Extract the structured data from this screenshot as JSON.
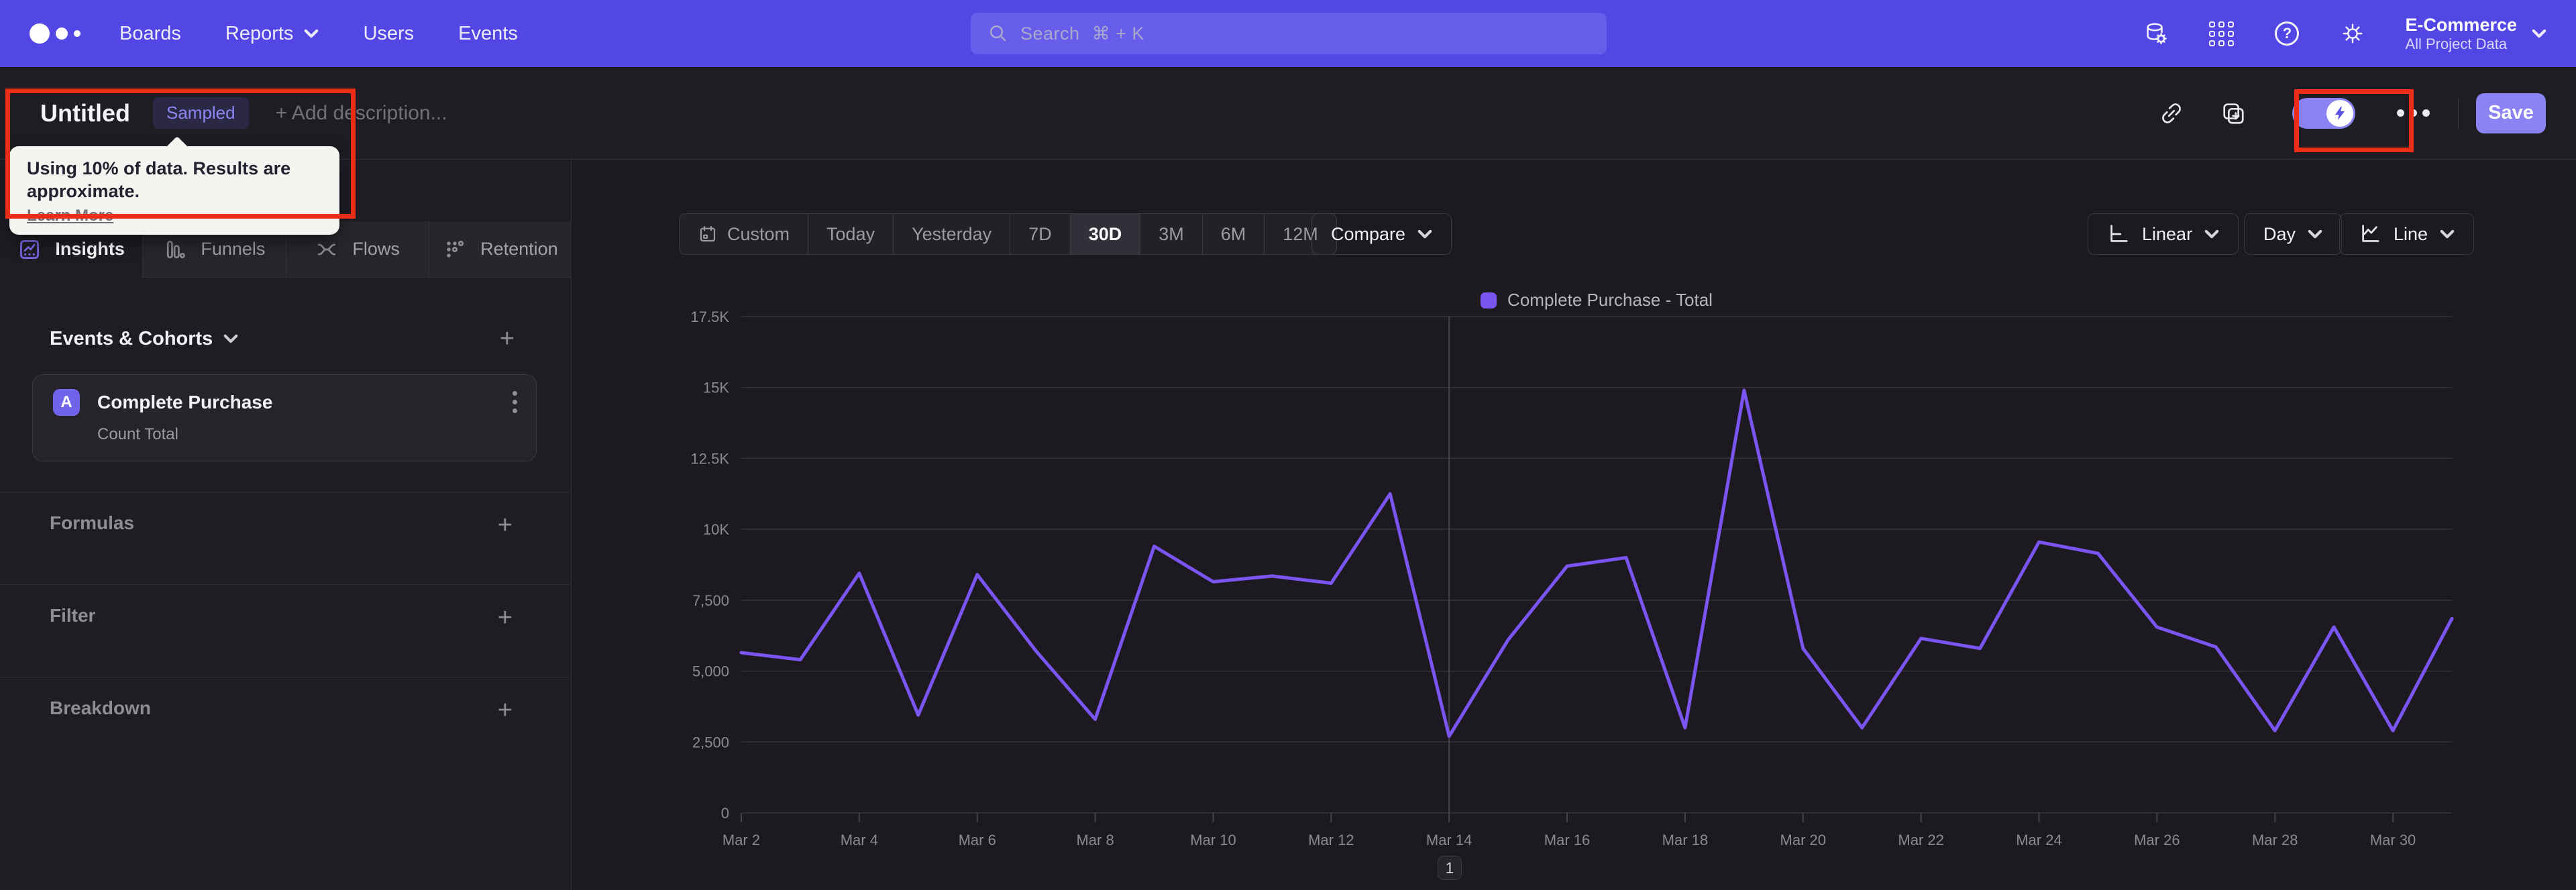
{
  "colors": {
    "navbar": "#5247e5",
    "accent": "#8b83f4",
    "line": "#7a55f2",
    "highlight_red": "#ee2d18"
  },
  "navbar": {
    "links": [
      "Boards",
      "Reports",
      "Users",
      "Events"
    ],
    "search_placeholder": "Search",
    "search_shortcut": "⌘ + K",
    "project": {
      "name": "E-Commerce",
      "scope": "All Project Data"
    }
  },
  "toolbar": {
    "title": "Untitled",
    "badge": "Sampled",
    "add_description": "+ Add description...",
    "save_label": "Save"
  },
  "tooltip": {
    "text": "Using 10% of data. Results are approximate.",
    "link": "Learn More"
  },
  "sidebar": {
    "tabs": [
      {
        "label": "Insights",
        "active": true
      },
      {
        "label": "Funnels",
        "active": false
      },
      {
        "label": "Flows",
        "active": false
      },
      {
        "label": "Retention",
        "active": false
      }
    ],
    "events_header": "Events & Cohorts",
    "event": {
      "letter": "A",
      "name": "Complete Purchase",
      "metric": "Count Total"
    },
    "sections": [
      "Formulas",
      "Filter",
      "Breakdown"
    ]
  },
  "controls": {
    "ranges": [
      "Custom",
      "Today",
      "Yesterday",
      "7D",
      "30D",
      "3M",
      "6M",
      "12M"
    ],
    "active_range": "30D",
    "compare_label": "Compare",
    "scale_label": "Linear",
    "interval_label": "Day",
    "chart_type_label": "Line"
  },
  "pagination": "1",
  "chart_data": {
    "type": "line",
    "title": "Complete Purchase - Total",
    "legend_position": "top-center",
    "grid": true,
    "ylim": [
      0,
      17500
    ],
    "y_ticks": [
      "17.5K",
      "15K",
      "12.5K",
      "10K",
      "7,500",
      "5,000",
      "2,500",
      "0"
    ],
    "y_tick_values": [
      17500,
      15000,
      12500,
      10000,
      7500,
      5000,
      2500,
      0
    ],
    "x": [
      "Mar 2",
      "Mar 3",
      "Mar 4",
      "Mar 5",
      "Mar 6",
      "Mar 7",
      "Mar 8",
      "Mar 9",
      "Mar 10",
      "Mar 11",
      "Mar 12",
      "Mar 13",
      "Mar 14",
      "Mar 15",
      "Mar 16",
      "Mar 17",
      "Mar 18",
      "Mar 19",
      "Mar 20",
      "Mar 21",
      "Mar 22",
      "Mar 23",
      "Mar 24",
      "Mar 25",
      "Mar 26",
      "Mar 27",
      "Mar 28",
      "Mar 29",
      "Mar 30",
      "Mar 31"
    ],
    "x_tick_every": 2,
    "vline_x": "Mar 14",
    "series": [
      {
        "name": "Complete Purchase - Total",
        "color": "#7a55f2",
        "values": [
          5650,
          5400,
          8450,
          3450,
          8400,
          5700,
          3300,
          9400,
          8150,
          8350,
          8100,
          11250,
          2700,
          6100,
          8700,
          9000,
          3000,
          14900,
          5800,
          3000,
          6150,
          5800,
          9550,
          9150,
          6550,
          5850,
          2900,
          6550,
          2900,
          6850
        ]
      }
    ]
  }
}
